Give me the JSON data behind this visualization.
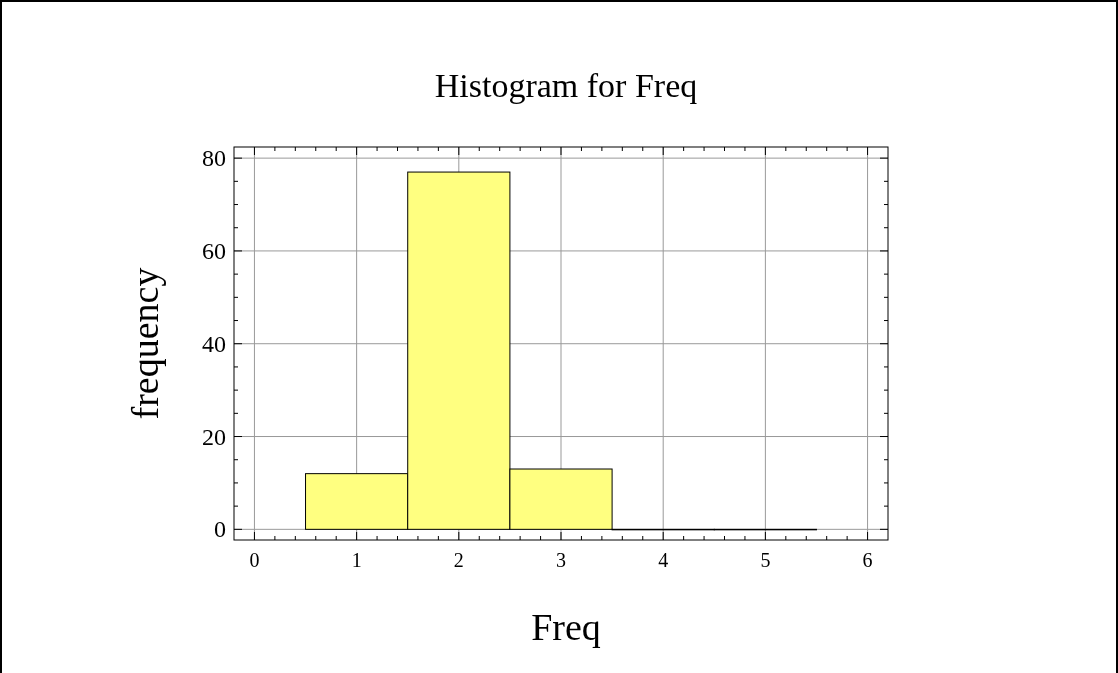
{
  "chart_data": {
    "type": "histogram",
    "title": "Histogram for Freq",
    "xlabel": "Freq",
    "ylabel": "frequency",
    "bins": [
      0.5,
      1.5,
      2.5,
      3.5,
      4.5,
      5.5
    ],
    "values": [
      12,
      77,
      13,
      0,
      0
    ],
    "color": "#ffff80",
    "xlim": [
      -0.2,
      6.2
    ],
    "ylim": [
      -2.3,
      82.4
    ],
    "xticks": [
      0,
      {
        "value": 0.2,
        "label": null
      },
      {
        "value": 0.4,
        "label": null
      },
      {
        "value": 0.6,
        "label": null
      },
      {
        "value": 0.8,
        "label": null
      },
      1,
      {
        "value": 1.2,
        "label": null
      },
      {
        "value": 1.4,
        "label": null
      },
      {
        "value": 1.6,
        "label": null
      },
      {
        "value": 1.8,
        "label": null
      },
      2,
      {
        "value": 2.2,
        "label": null
      },
      {
        "value": 2.4,
        "label": null
      },
      {
        "value": 2.6,
        "label": null
      },
      {
        "value": 2.8,
        "label": null
      },
      3,
      {
        "value": 3.2,
        "label": null
      },
      {
        "value": 3.4,
        "label": null
      },
      {
        "value": 3.6,
        "label": null
      },
      {
        "value": 3.8,
        "label": null
      },
      4,
      {
        "value": 4.2,
        "label": null
      },
      {
        "value": 4.4,
        "label": null
      },
      {
        "value": 4.6,
        "label": null
      },
      {
        "value": 4.8,
        "label": null
      },
      5,
      {
        "value": 5.2,
        "label": null
      },
      {
        "value": 5.4,
        "label": null
      },
      {
        "value": 5.6,
        "label": null
      },
      {
        "value": 5.8,
        "label": null
      },
      6
    ],
    "yticks": [
      0,
      {
        "value": 5,
        "label": null
      },
      {
        "value": 10,
        "label": null
      },
      {
        "value": 15,
        "label": null
      },
      20,
      {
        "value": 25,
        "label": null
      },
      {
        "value": 30,
        "label": null
      },
      {
        "value": 35,
        "label": null
      },
      40,
      {
        "value": 45,
        "label": null
      },
      {
        "value": 50,
        "label": null
      },
      {
        "value": 55,
        "label": null
      },
      60,
      {
        "value": 65,
        "label": null
      },
      {
        "value": 70,
        "label": null
      },
      {
        "value": 75,
        "label": null
      },
      80
    ],
    "grid": true
  }
}
